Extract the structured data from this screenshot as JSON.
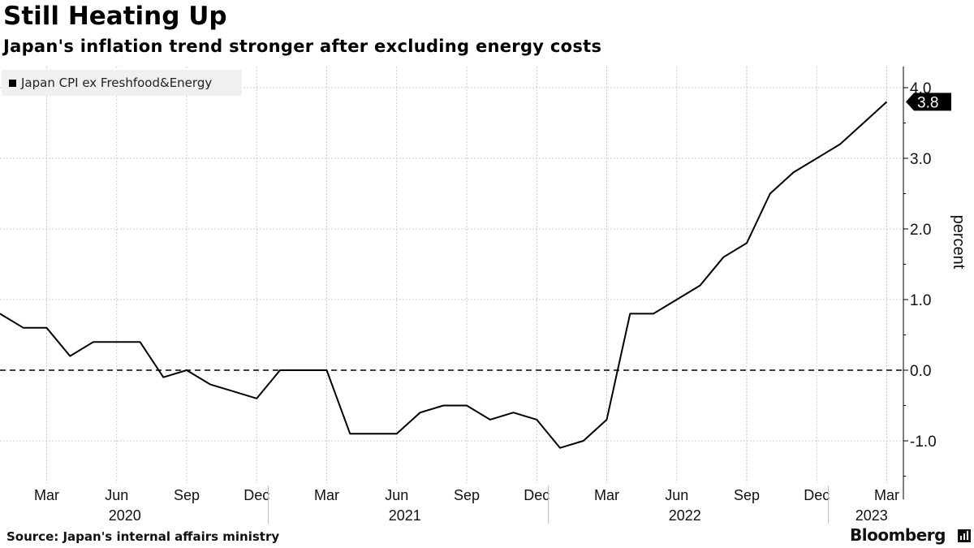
{
  "title": "Still Heating Up",
  "subtitle": "Japan's inflation trend stronger after excluding energy costs",
  "source": "Source: Japan's internal affairs ministry",
  "brand": "Bloomberg",
  "colors": {
    "line": "#000000",
    "grid": "#c8c8c8",
    "legend_bg": "#f0f0f0",
    "callout_bg": "#000000"
  },
  "chart_data": {
    "type": "line",
    "title": "Still Heating Up",
    "subtitle": "Japan's inflation trend stronger after excluding energy costs",
    "ylabel": "percent",
    "ylim": [
      -1.6,
      4.3
    ],
    "yticks": [
      -1.0,
      0.0,
      1.0,
      2.0,
      3.0,
      4.0
    ],
    "ytick_labels": [
      "-1.0",
      "0.0",
      "1.0",
      "2.0",
      "3.0",
      "4.0"
    ],
    "reference_line": 0.0,
    "last_value_label": "3.8",
    "series": [
      {
        "name": "Japan CPI ex Freshfood&Energy",
        "x": [
          "2020-01",
          "2020-02",
          "2020-03",
          "2020-04",
          "2020-05",
          "2020-06",
          "2020-07",
          "2020-08",
          "2020-09",
          "2020-10",
          "2020-11",
          "2020-12",
          "2021-01",
          "2021-02",
          "2021-03",
          "2021-04",
          "2021-05",
          "2021-06",
          "2021-07",
          "2021-08",
          "2021-09",
          "2021-10",
          "2021-11",
          "2021-12",
          "2022-01",
          "2022-02",
          "2022-03",
          "2022-04",
          "2022-05",
          "2022-06",
          "2022-07",
          "2022-08",
          "2022-09",
          "2022-10",
          "2022-11",
          "2022-12",
          "2023-01",
          "2023-02",
          "2023-03"
        ],
        "values": [
          0.8,
          0.6,
          0.6,
          0.2,
          0.4,
          0.4,
          0.4,
          -0.1,
          0.0,
          -0.2,
          -0.3,
          -0.4,
          0.0,
          0.0,
          0.0,
          -0.9,
          -0.9,
          -0.9,
          -0.6,
          -0.5,
          -0.5,
          -0.7,
          -0.6,
          -0.7,
          -1.1,
          -1.0,
          -0.7,
          0.8,
          0.8,
          1.0,
          1.2,
          1.6,
          1.8,
          2.5,
          2.8,
          3.0,
          3.2,
          3.5,
          3.8
        ]
      }
    ],
    "x_month_ticks": [
      {
        "label": "Mar",
        "index": 2
      },
      {
        "label": "Jun",
        "index": 5
      },
      {
        "label": "Sep",
        "index": 8
      },
      {
        "label": "Dec",
        "index": 11
      },
      {
        "label": "Mar",
        "index": 14
      },
      {
        "label": "Jun",
        "index": 17
      },
      {
        "label": "Sep",
        "index": 20
      },
      {
        "label": "Dec",
        "index": 23
      },
      {
        "label": "Mar",
        "index": 26
      },
      {
        "label": "Jun",
        "index": 29
      },
      {
        "label": "Sep",
        "index": 32
      },
      {
        "label": "Dec",
        "index": 35
      },
      {
        "label": "Mar",
        "index": 38
      }
    ],
    "x_year_labels": [
      {
        "label": "2020",
        "index": 5
      },
      {
        "label": "2021",
        "index": 17
      },
      {
        "label": "2022",
        "index": 29
      },
      {
        "label": "2023",
        "index": 37
      }
    ],
    "legend_position": "top-left",
    "grid": true
  }
}
